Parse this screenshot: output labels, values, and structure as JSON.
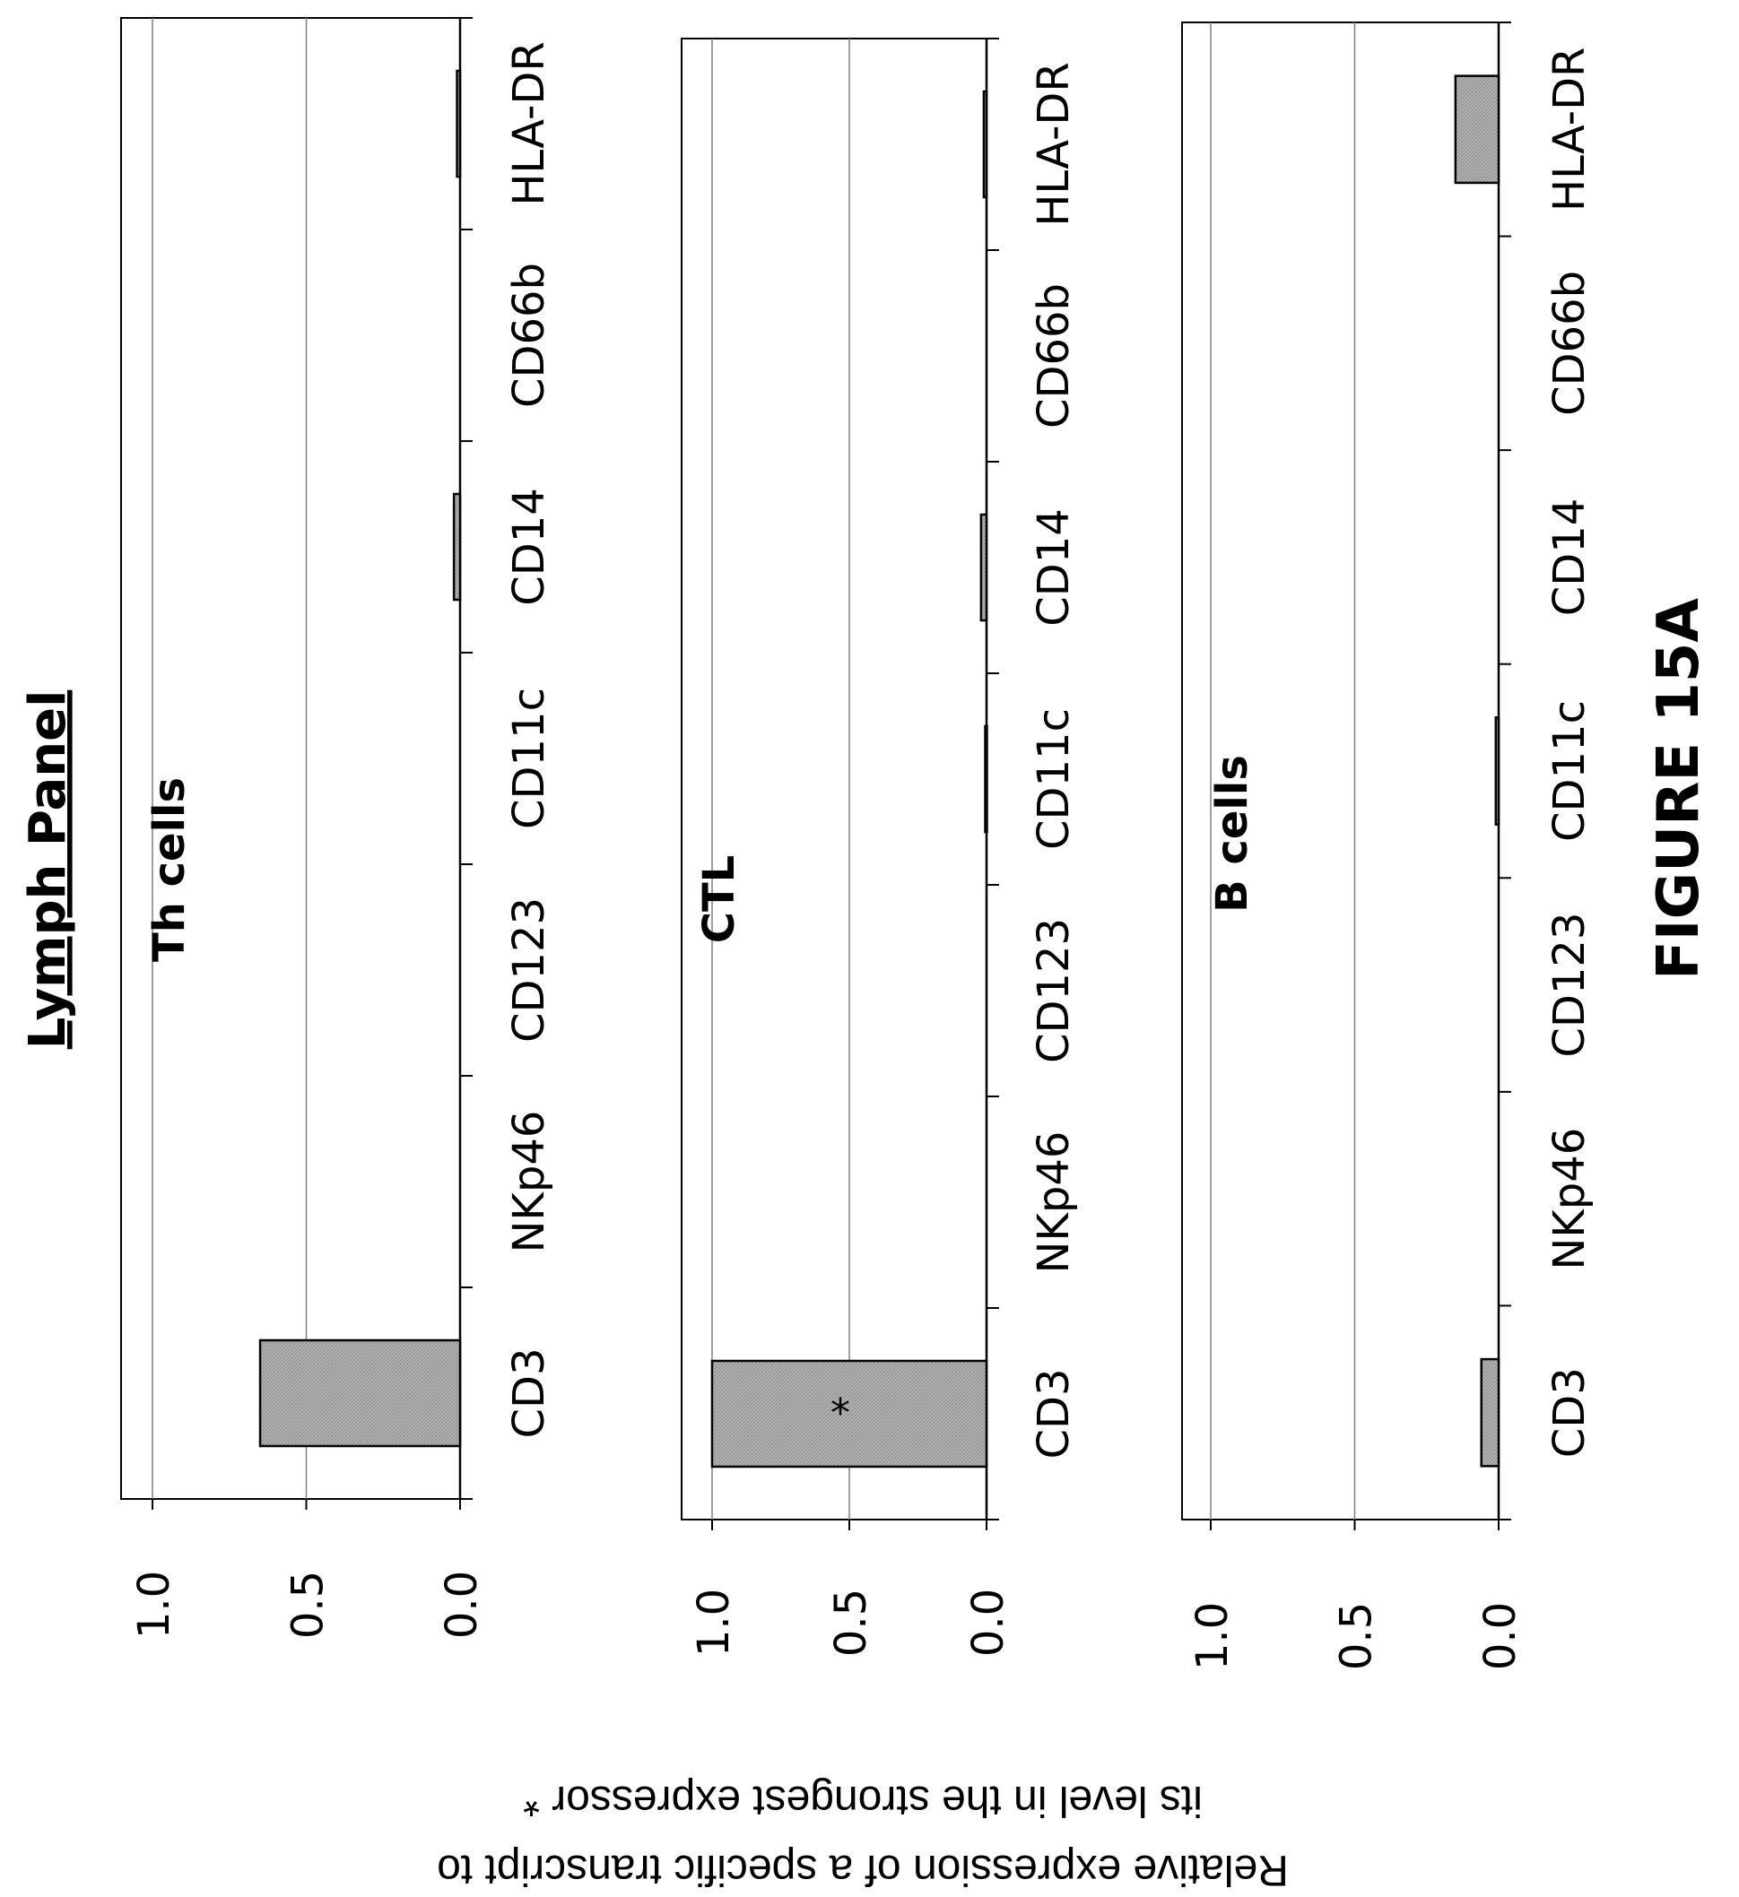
{
  "figure_label": "FIGURE 15A",
  "panel_title": "Lymph Panel",
  "y_axis_label": {
    "line1": "Relative expression of a specific transcript to",
    "line2": "its level in the strongest expressor *"
  },
  "colors": {
    "bar_fill": "#b3b3b3",
    "bar_stroke": "#000000",
    "gridline": "#808080",
    "axis": "#000000"
  },
  "chart_data": [
    {
      "type": "bar",
      "title": "Th cells",
      "categories": [
        "CD3",
        "NKp46",
        "CD123",
        "CD11c",
        "CD14",
        "CD66b",
        "HLA-DR"
      ],
      "values": [
        0.65,
        0,
        0,
        0,
        0.02,
        0,
        0.01
      ],
      "star": [],
      "ylim": [
        0,
        1
      ],
      "yticks": [
        "0.0",
        "0.5",
        "1.0"
      ],
      "grid": true
    },
    {
      "type": "bar",
      "title": "CTL",
      "categories": [
        "CD3",
        "NKp46",
        "CD123",
        "CD11c",
        "CD14",
        "CD66b",
        "HLA-DR"
      ],
      "values": [
        1.0,
        0,
        0,
        0.005,
        0.02,
        0,
        0.01
      ],
      "star": [
        "*",
        "",
        "",
        "",
        "",
        "",
        ""
      ],
      "ylim": [
        0,
        1
      ],
      "yticks": [
        "0.0",
        "0.5",
        "1.0"
      ],
      "grid": true
    },
    {
      "type": "bar",
      "title": "B cells",
      "categories": [
        "CD3",
        "NKp46",
        "CD123",
        "CD11c",
        "CD14",
        "CD66b",
        "HLA-DR"
      ],
      "values": [
        0.06,
        0,
        0,
        0.01,
        0,
        0,
        0.15
      ],
      "star": [],
      "ylim": [
        0,
        1
      ],
      "yticks": [
        "0.0",
        "0.5",
        "1.0"
      ],
      "grid": true
    }
  ]
}
